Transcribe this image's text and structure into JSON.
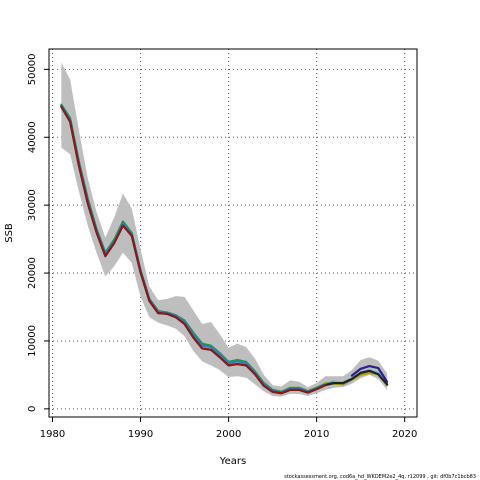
{
  "chart_data": {
    "type": "line",
    "xlabel": "Years",
    "ylabel": "SSB",
    "xlim": [
      1979.6,
      2021.4
    ],
    "ylim": [
      -1200,
      53000
    ],
    "x_ticks": [
      1980,
      1990,
      2000,
      2010,
      2020
    ],
    "y_ticks": [
      0,
      10000,
      20000,
      30000,
      40000,
      50000
    ],
    "grid": true,
    "grid_style": "dotted",
    "band": {
      "x": [
        1981,
        1982,
        1983,
        1984,
        1985,
        1986,
        1987,
        1988,
        1989,
        1990,
        1991,
        1992,
        1993,
        1994,
        1995,
        1996,
        1997,
        1998,
        1999,
        2000,
        2001,
        2002,
        2003,
        2004,
        2005,
        2006,
        2007,
        2008,
        2009,
        2010,
        2011,
        2012,
        2013,
        2014,
        2015,
        2016,
        2017,
        2018
      ],
      "upper": [
        51000,
        48500,
        41000,
        34000,
        29000,
        25200,
        28200,
        31700,
        29500,
        23500,
        18000,
        16000,
        16200,
        16600,
        16500,
        14500,
        12500,
        12800,
        11000,
        9000,
        9600,
        9100,
        7400,
        5000,
        3500,
        3300,
        4200,
        4000,
        3200,
        3800,
        4800,
        4800,
        4800,
        5700,
        7200,
        7600,
        7100,
        5200
      ],
      "lower": [
        38500,
        37500,
        32000,
        27000,
        23000,
        19500,
        21000,
        23000,
        21500,
        16500,
        13500,
        12700,
        12300,
        11800,
        10700,
        8500,
        7000,
        6400,
        5700,
        4700,
        4800,
        4600,
        3600,
        2600,
        1900,
        1800,
        2200,
        2200,
        1900,
        2300,
        2800,
        3100,
        3200,
        3700,
        4500,
        5000,
        4400,
        2800
      ],
      "color": "#bebebe"
    },
    "series": [
      {
        "color": "#1a9850",
        "x": [
          1981,
          1982,
          1983,
          1984,
          1985,
          1986,
          1987,
          1988,
          1989,
          1990,
          1991,
          1992,
          1993,
          1994,
          1995,
          1996,
          1997,
          1998,
          1999,
          2000,
          2001,
          2002,
          2003,
          2004,
          2005,
          2006,
          2007,
          2008,
          2009,
          2010,
          2011
        ],
        "y": [
          44800,
          42800,
          36400,
          31000,
          26500,
          23000,
          24900,
          27600,
          25900,
          20400,
          16200,
          14400,
          14200,
          13800,
          13000,
          11200,
          9600,
          9300,
          8200,
          6900,
          7200,
          6900,
          5500,
          3800,
          2800,
          2500,
          3100,
          3100,
          2600,
          3100,
          3700
        ]
      },
      {
        "color": "#4575b4",
        "x": [
          1981,
          1982,
          1983,
          1984,
          1985,
          1986,
          1987,
          1988,
          1989,
          1990,
          1991,
          1992,
          1993,
          1994,
          1995,
          1996,
          1997,
          1998,
          1999,
          2000,
          2001,
          2002,
          2003,
          2004,
          2005,
          2006,
          2007,
          2008,
          2009,
          2010,
          2011
        ],
        "y": [
          44600,
          42500,
          36100,
          30600,
          26300,
          22800,
          24600,
          27300,
          25700,
          20300,
          16100,
          14300,
          14100,
          13700,
          12800,
          10900,
          9300,
          9100,
          8000,
          6700,
          7000,
          6700,
          5300,
          3600,
          2700,
          2400,
          3000,
          3000,
          2500,
          3000,
          3600
        ]
      },
      {
        "color": "#b3a100",
        "x": [
          2011,
          2012,
          2013,
          2014,
          2015,
          2016,
          2017,
          2018
        ],
        "y": [
          3800,
          3700,
          3600,
          4300,
          5000,
          5300,
          5100,
          3500
        ]
      },
      {
        "color": "#3c8c8c",
        "x": [
          2011,
          2012,
          2013,
          2014,
          2015,
          2016,
          2017,
          2018
        ],
        "y": [
          3600,
          4000,
          3700,
          4400,
          5300,
          5600,
          5200,
          3600
        ]
      },
      {
        "color": "#67b7e8",
        "x": [
          2012,
          2013,
          2014,
          2015,
          2016,
          2017,
          2018
        ],
        "y": [
          4000,
          3900,
          4500,
          5400,
          5700,
          5300,
          3700
        ]
      },
      {
        "color": "#2c1f8c",
        "x": [
          2014,
          2015,
          2016,
          2017,
          2018
        ],
        "y": [
          4900,
          5900,
          6300,
          6000,
          4000
        ]
      },
      {
        "color": "#222222",
        "x": [
          1981,
          1982,
          1983,
          1984,
          1985,
          1986,
          1987,
          1988,
          1989,
          1990,
          1991,
          1992,
          1993,
          1994,
          1995,
          1996,
          1997,
          1998,
          1999,
          2000,
          2001,
          2002,
          2003,
          2004,
          2005,
          2006,
          2007,
          2008,
          2009,
          2010,
          2011,
          2012,
          2013,
          2014,
          2015,
          2016,
          2017,
          2018
        ],
        "y": [
          44500,
          42300,
          35800,
          30300,
          26000,
          22500,
          24400,
          27000,
          25500,
          20100,
          15900,
          14100,
          14000,
          13500,
          12500,
          10500,
          8900,
          8700,
          7600,
          6400,
          6600,
          6400,
          5100,
          3400,
          2500,
          2300,
          2800,
          2800,
          2400,
          2900,
          3500,
          3800,
          3800,
          4400,
          5300,
          5600,
          5100,
          3600
        ]
      },
      {
        "color": "#8b1a1a",
        "x": [
          1981,
          1982,
          1983,
          1984,
          1985,
          1986,
          1987,
          1988,
          1989,
          1990,
          1991,
          1992,
          1993,
          1994,
          1995,
          1996,
          1997,
          1998,
          1999,
          2000,
          2001,
          2002,
          2003,
          2004,
          2005,
          2006,
          2007,
          2008,
          2009,
          2010,
          2011
        ],
        "y": [
          44500,
          42300,
          35800,
          30300,
          26000,
          22500,
          24400,
          27000,
          25500,
          20100,
          15900,
          14100,
          14000,
          13500,
          12500,
          10500,
          8900,
          8700,
          7600,
          6400,
          6600,
          6400,
          5100,
          3400,
          2500,
          2300,
          2800,
          2800,
          2400,
          2900,
          3500
        ]
      }
    ]
  },
  "footer_text": "stockassessment.org,  cod6a_hd_WKDEM2e2_4q,  r12099 ,  git:  df0b7c1bcb83"
}
